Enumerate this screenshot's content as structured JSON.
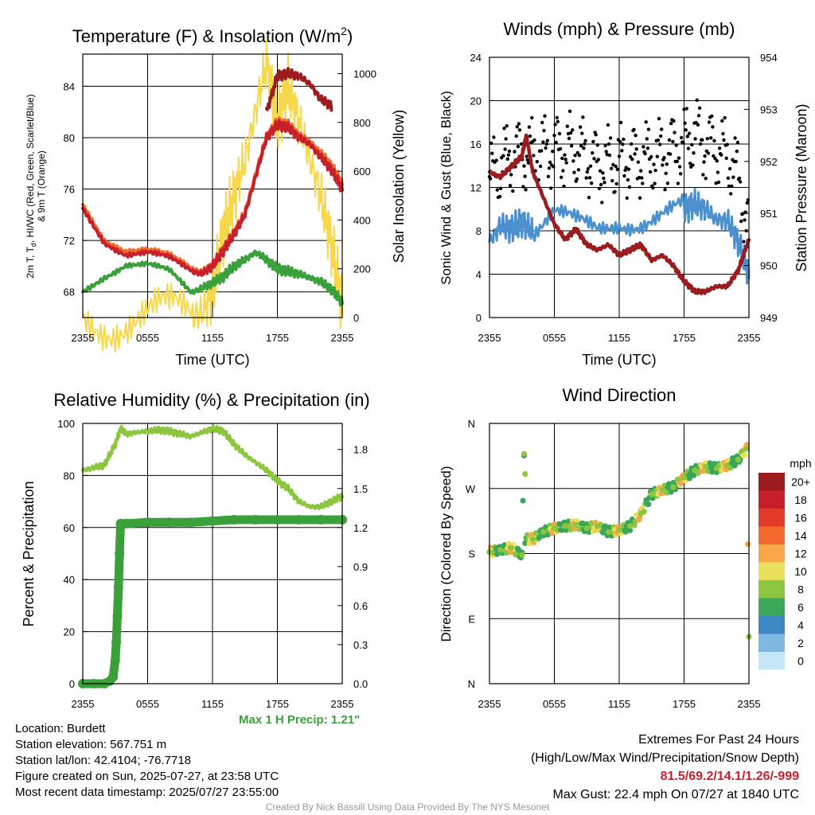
{
  "panels": {
    "temp": {
      "title_a": "Temperature (F) & Insolation (W/m",
      "title_sup": "2",
      "title_b": ")",
      "ylabel_main": "2m T, T",
      "ylabel_sub": "d",
      "ylabel_rest": ", HI/WC (Red, Green, Scarlet/Blue)",
      "ylabel_line2": "& 9m T (Orange)",
      "y2label": "Solar Insolation (Yellow)",
      "xlabel": "Time (UTC)",
      "yticks": [
        "68",
        "72",
        "76",
        "80",
        "84"
      ],
      "y2ticks": [
        "0",
        "200",
        "400",
        "600",
        "800",
        "1000"
      ],
      "xticks": [
        "2355",
        "0555",
        "1155",
        "1755",
        "2355"
      ]
    },
    "wind": {
      "title": "Winds (mph) & Pressure (mb)",
      "ylabel": "Sonic Wind & Gust (Blue, Black)",
      "y2label": "Station Pressure (Maroon)",
      "xlabel": "Time (UTC)",
      "yticks": [
        "0",
        "4",
        "8",
        "12",
        "16",
        "20",
        "24"
      ],
      "y2ticks": [
        "949",
        "950",
        "951",
        "952",
        "953",
        "954"
      ],
      "xticks": [
        "2355",
        "0555",
        "1155",
        "1755",
        "2355"
      ]
    },
    "rh": {
      "title": "Relative Humidity (%) & Precipitation (in)",
      "ylabel": "Percent & Precipitation",
      "yticks": [
        "0",
        "20",
        "40",
        "60",
        "80",
        "100"
      ],
      "y2ticks": [
        "0.0",
        "0.3",
        "0.6",
        "0.9",
        "1.2",
        "1.5",
        "1.8"
      ],
      "xticks": [
        "2355",
        "0555",
        "1155",
        "1755",
        "2355"
      ],
      "max_precip": "Max 1 H Precip: 1.21\""
    },
    "dir": {
      "title": "Wind Direction",
      "ylabel": "Direction (Colored By Speed)",
      "yticks": [
        "N",
        "E",
        "S",
        "W",
        "N"
      ],
      "xticks": [
        "2355",
        "0555",
        "1155",
        "1755",
        "2355"
      ],
      "legend_title": "mph",
      "legend_labels": [
        "20+",
        "18",
        "16",
        "14",
        "12",
        "10",
        "8",
        "6",
        "4",
        "2",
        "0"
      ],
      "legend_colors": [
        "#9b1c1f",
        "#c8202a",
        "#e23b2a",
        "#f26a2e",
        "#f9a64a",
        "#e8e05a",
        "#8cc63f",
        "#3aa657",
        "#3d88c4",
        "#7fb8e0",
        "#c5e6f7"
      ]
    }
  },
  "info": {
    "location": "Location: Burdett",
    "elevation": "Station elevation: 567.751 m",
    "latlon": "Station lat/lon: 42.4104; -76.7718",
    "created": "Figure created on Sun, 2025-07-27, at 23:58 UTC",
    "recent": "Most recent data timestamp: 2025/07/27 23:55:00"
  },
  "extremes": {
    "title": "Extremes For Past 24 Hours",
    "subtitle": "(High/Low/Max Wind/Precipitation/Snow Depth)",
    "values": "81.5/69.2/14.1/1.26/-999",
    "gust": "Max Gust: 22.4 mph On 07/27 at 1840 UTC"
  },
  "credit": "Created By Nick Bassill Using Data Provided By The NYS Mesonet",
  "chart_data": [
    {
      "type": "line",
      "title": "Temperature (F) & Insolation (W/m2)",
      "xlabel": "Time (UTC)",
      "x_hours": [
        0,
        2,
        4,
        6,
        8,
        10,
        11,
        12,
        13,
        14,
        15,
        16,
        17,
        18,
        19,
        20,
        21,
        22,
        23,
        24
      ],
      "xlim": [
        0,
        24
      ],
      "ylim": [
        66,
        86.5
      ],
      "y2lim": [
        0,
        1080
      ],
      "series": [
        {
          "name": "2m T",
          "color": "#c8202a",
          "values": [
            74.5,
            72,
            71,
            71,
            70.5,
            69.6,
            69.4,
            70,
            71.2,
            72.5,
            74,
            77,
            80,
            81,
            80.8,
            80,
            79.5,
            78.5,
            77.5,
            76
          ]
        },
        {
          "name": "9m T",
          "color": "#f26a2e",
          "values": [
            74.8,
            72.2,
            71.3,
            71.2,
            70.7,
            69.8,
            69.5,
            70.1,
            71.3,
            72.6,
            74.2,
            77.2,
            80.1,
            81.2,
            81,
            80.2,
            79.7,
            78.8,
            77.8,
            76.4
          ]
        },
        {
          "name": "Td",
          "color": "#3aa03a",
          "values": [
            68,
            69.3,
            70.2,
            70.1,
            69.5,
            67.9,
            68.3,
            68.7,
            69.2,
            70,
            70.5,
            71.1,
            70.5,
            69.8,
            69.6,
            69.4,
            69.1,
            68.8,
            68.2,
            67.2
          ]
        },
        {
          "name": "HI/WC",
          "color": "#9b1c1f",
          "values": [
            null,
            null,
            null,
            null,
            null,
            null,
            null,
            null,
            null,
            null,
            null,
            null,
            82,
            84.8,
            85,
            84.8,
            84.2,
            83,
            82.5,
            null
          ]
        },
        {
          "name": "Solar Insolation",
          "color": "#f6d84a",
          "axis": "y2",
          "values": [
            0,
            0,
            0,
            0,
            0,
            0,
            20,
            100,
            350,
            500,
            650,
            850,
            1050,
            800,
            950,
            800,
            650,
            500,
            300,
            50
          ]
        }
      ]
    },
    {
      "type": "line",
      "title": "Winds (mph) & Pressure (mb)",
      "xlabel": "Time (UTC)",
      "xlim": [
        0,
        24
      ],
      "ylim": [
        0,
        24
      ],
      "y2lim": [
        949,
        954
      ],
      "series": [
        {
          "name": "Sonic Wind",
          "color": "#4a90cf",
          "x": [
            0,
            1,
            2,
            3,
            4,
            6,
            8,
            10,
            12,
            14,
            16,
            18,
            19,
            20,
            21,
            22,
            23,
            24
          ],
          "values": [
            7,
            8.5,
            8.2,
            8.8,
            8,
            9.5,
            8.5,
            8,
            9,
            9,
            9.5,
            10,
            10.5,
            10,
            9,
            9,
            7,
            4
          ]
        },
        {
          "name": "Gust",
          "color": "#000000",
          "x": [
            0,
            1,
            2,
            3,
            4,
            6,
            8,
            10,
            12,
            14,
            16,
            18,
            19,
            20,
            21,
            22,
            23,
            24
          ],
          "values": [
            13,
            14,
            15,
            15,
            15,
            15.5,
            15.5,
            14,
            14.5,
            14.5,
            15,
            16,
            17,
            16,
            15.5,
            15,
            13,
            8
          ]
        },
        {
          "name": "Station Pressure",
          "color": "#9b1c1f",
          "axis": "y2",
          "x": [
            0,
            1,
            2,
            3,
            3.4,
            4,
            5,
            6,
            7,
            8,
            9,
            10,
            11,
            12,
            13,
            14,
            15,
            16,
            17,
            18,
            19,
            20,
            21,
            22,
            23,
            24
          ],
          "values": [
            951.8,
            951.7,
            951.9,
            952.1,
            952.5,
            951.8,
            951.3,
            950.8,
            950.5,
            950.7,
            950.4,
            950.3,
            950.4,
            950.2,
            950.3,
            950.4,
            950.1,
            950.2,
            950,
            949.7,
            949.5,
            949.5,
            949.6,
            949.6,
            949.9,
            950.5
          ]
        }
      ]
    },
    {
      "type": "line",
      "title": "Relative Humidity (%) & Precipitation (in)",
      "xlim": [
        0,
        24
      ],
      "ylim": [
        0,
        100
      ],
      "y2lim": [
        0,
        2
      ],
      "series": [
        {
          "name": "Relative Humidity",
          "color": "#8cc63f",
          "x": [
            0,
            1,
            2,
            3,
            3.5,
            4,
            5,
            6,
            7,
            8,
            9,
            10,
            11,
            12,
            13,
            14,
            15,
            16,
            17,
            18,
            19,
            20,
            21,
            22,
            23,
            24
          ],
          "values": [
            82,
            83,
            84,
            92,
            98,
            96,
            96.5,
            97,
            97.5,
            97,
            96,
            95,
            96.5,
            98,
            97,
            92,
            88,
            85,
            82,
            78,
            75,
            70,
            68,
            68,
            70,
            72
          ]
        },
        {
          "name": "Precipitation",
          "color": "#3aa03a",
          "axis": "y2",
          "x": [
            0,
            1,
            2,
            2.5,
            2.8,
            3.0,
            3.1,
            3.2,
            3.3,
            3.4,
            3.5,
            4,
            6,
            8,
            10,
            12,
            14,
            16,
            18,
            20,
            22,
            24
          ],
          "values": [
            0,
            0,
            0,
            0.02,
            0.05,
            0.18,
            0.32,
            0.52,
            0.74,
            1.0,
            1.23,
            1.23,
            1.24,
            1.24,
            1.24,
            1.25,
            1.26,
            1.26,
            1.26,
            1.26,
            1.26,
            1.26
          ]
        }
      ]
    },
    {
      "type": "scatter",
      "title": "Wind Direction",
      "ylabel": "Direction (Colored By Speed)",
      "xlim": [
        0,
        24
      ],
      "ylim": [
        0,
        360
      ],
      "points": [
        {
          "x": 0,
          "y": 182
        },
        {
          "x": 1,
          "y": 185
        },
        {
          "x": 2,
          "y": 188
        },
        {
          "x": 3,
          "y": 178
        },
        {
          "x": 3.2,
          "y": 318
        },
        {
          "x": 3.3,
          "y": 290
        },
        {
          "x": 4,
          "y": 200
        },
        {
          "x": 5,
          "y": 210
        },
        {
          "x": 6,
          "y": 215
        },
        {
          "x": 7,
          "y": 218
        },
        {
          "x": 8,
          "y": 220
        },
        {
          "x": 9,
          "y": 215
        },
        {
          "x": 10,
          "y": 218
        },
        {
          "x": 11,
          "y": 210
        },
        {
          "x": 12,
          "y": 212
        },
        {
          "x": 13,
          "y": 218
        },
        {
          "x": 14,
          "y": 235
        },
        {
          "x": 15,
          "y": 262
        },
        {
          "x": 16,
          "y": 268
        },
        {
          "x": 17,
          "y": 272
        },
        {
          "x": 18,
          "y": 285
        },
        {
          "x": 19,
          "y": 295
        },
        {
          "x": 20,
          "y": 300
        },
        {
          "x": 21,
          "y": 298
        },
        {
          "x": 22,
          "y": 302
        },
        {
          "x": 23,
          "y": 310
        },
        {
          "x": 23.8,
          "y": 325
        },
        {
          "x": 24,
          "y": 65
        }
      ]
    }
  ]
}
